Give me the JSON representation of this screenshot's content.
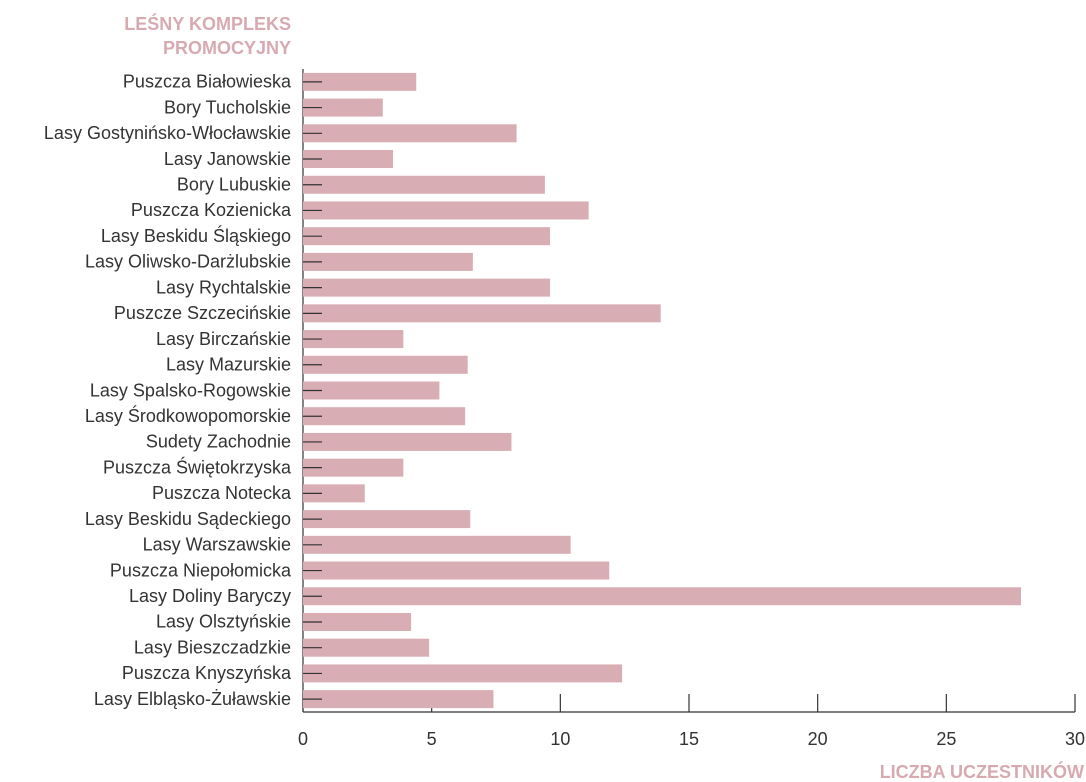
{
  "chart_data": {
    "type": "bar",
    "orientation": "horizontal",
    "y_label": "LEŚNY KOMPLEKS PROMOCYJNY",
    "x_label": "LICZBA UCZESTNIKÓW",
    "categories": [
      "Puszcza Białowieska",
      "Bory Tucholskie",
      "Lasy Gostynińsko-Włocławskie",
      "Lasy Janowskie",
      "Bory Lubuskie",
      "Puszcza Kozienicka",
      "Lasy Beskidu Śląskiego",
      "Lasy Oliwsko-Darżlubskie",
      "Lasy Rychtalskie",
      "Puszcze Szczecińskie",
      "Lasy Birczańskie",
      "Lasy Mazurskie",
      "Lasy Spalsko-Rogowskie",
      "Lasy Środkowopomorskie",
      "Sudety Zachodnie",
      "Puszcza Świętokrzyska",
      "Puszcza Notecka",
      "Lasy Beskidu Sądeckiego",
      "Lasy Warszawskie",
      "Puszcza Niepołomicka",
      "Lasy Doliny Baryczy",
      "Lasy Olsztyńskie",
      "Lasy Bieszczadzkie",
      "Puszcza Knyszyńska",
      "Lasy Elbląsko-Żuławskie"
    ],
    "values": [
      4.4,
      3.1,
      8.3,
      3.5,
      9.4,
      11.1,
      9.6,
      6.6,
      9.6,
      13.9,
      3.9,
      6.4,
      5.3,
      6.3,
      8.1,
      3.9,
      2.4,
      6.5,
      10.4,
      11.9,
      27.9,
      4.2,
      4.9,
      12.4,
      7.4
    ],
    "color": "#d8adb4",
    "xlim": [
      0,
      30
    ],
    "xticks": [
      0,
      5,
      10,
      15,
      20,
      25,
      30
    ],
    "grid": false
  }
}
